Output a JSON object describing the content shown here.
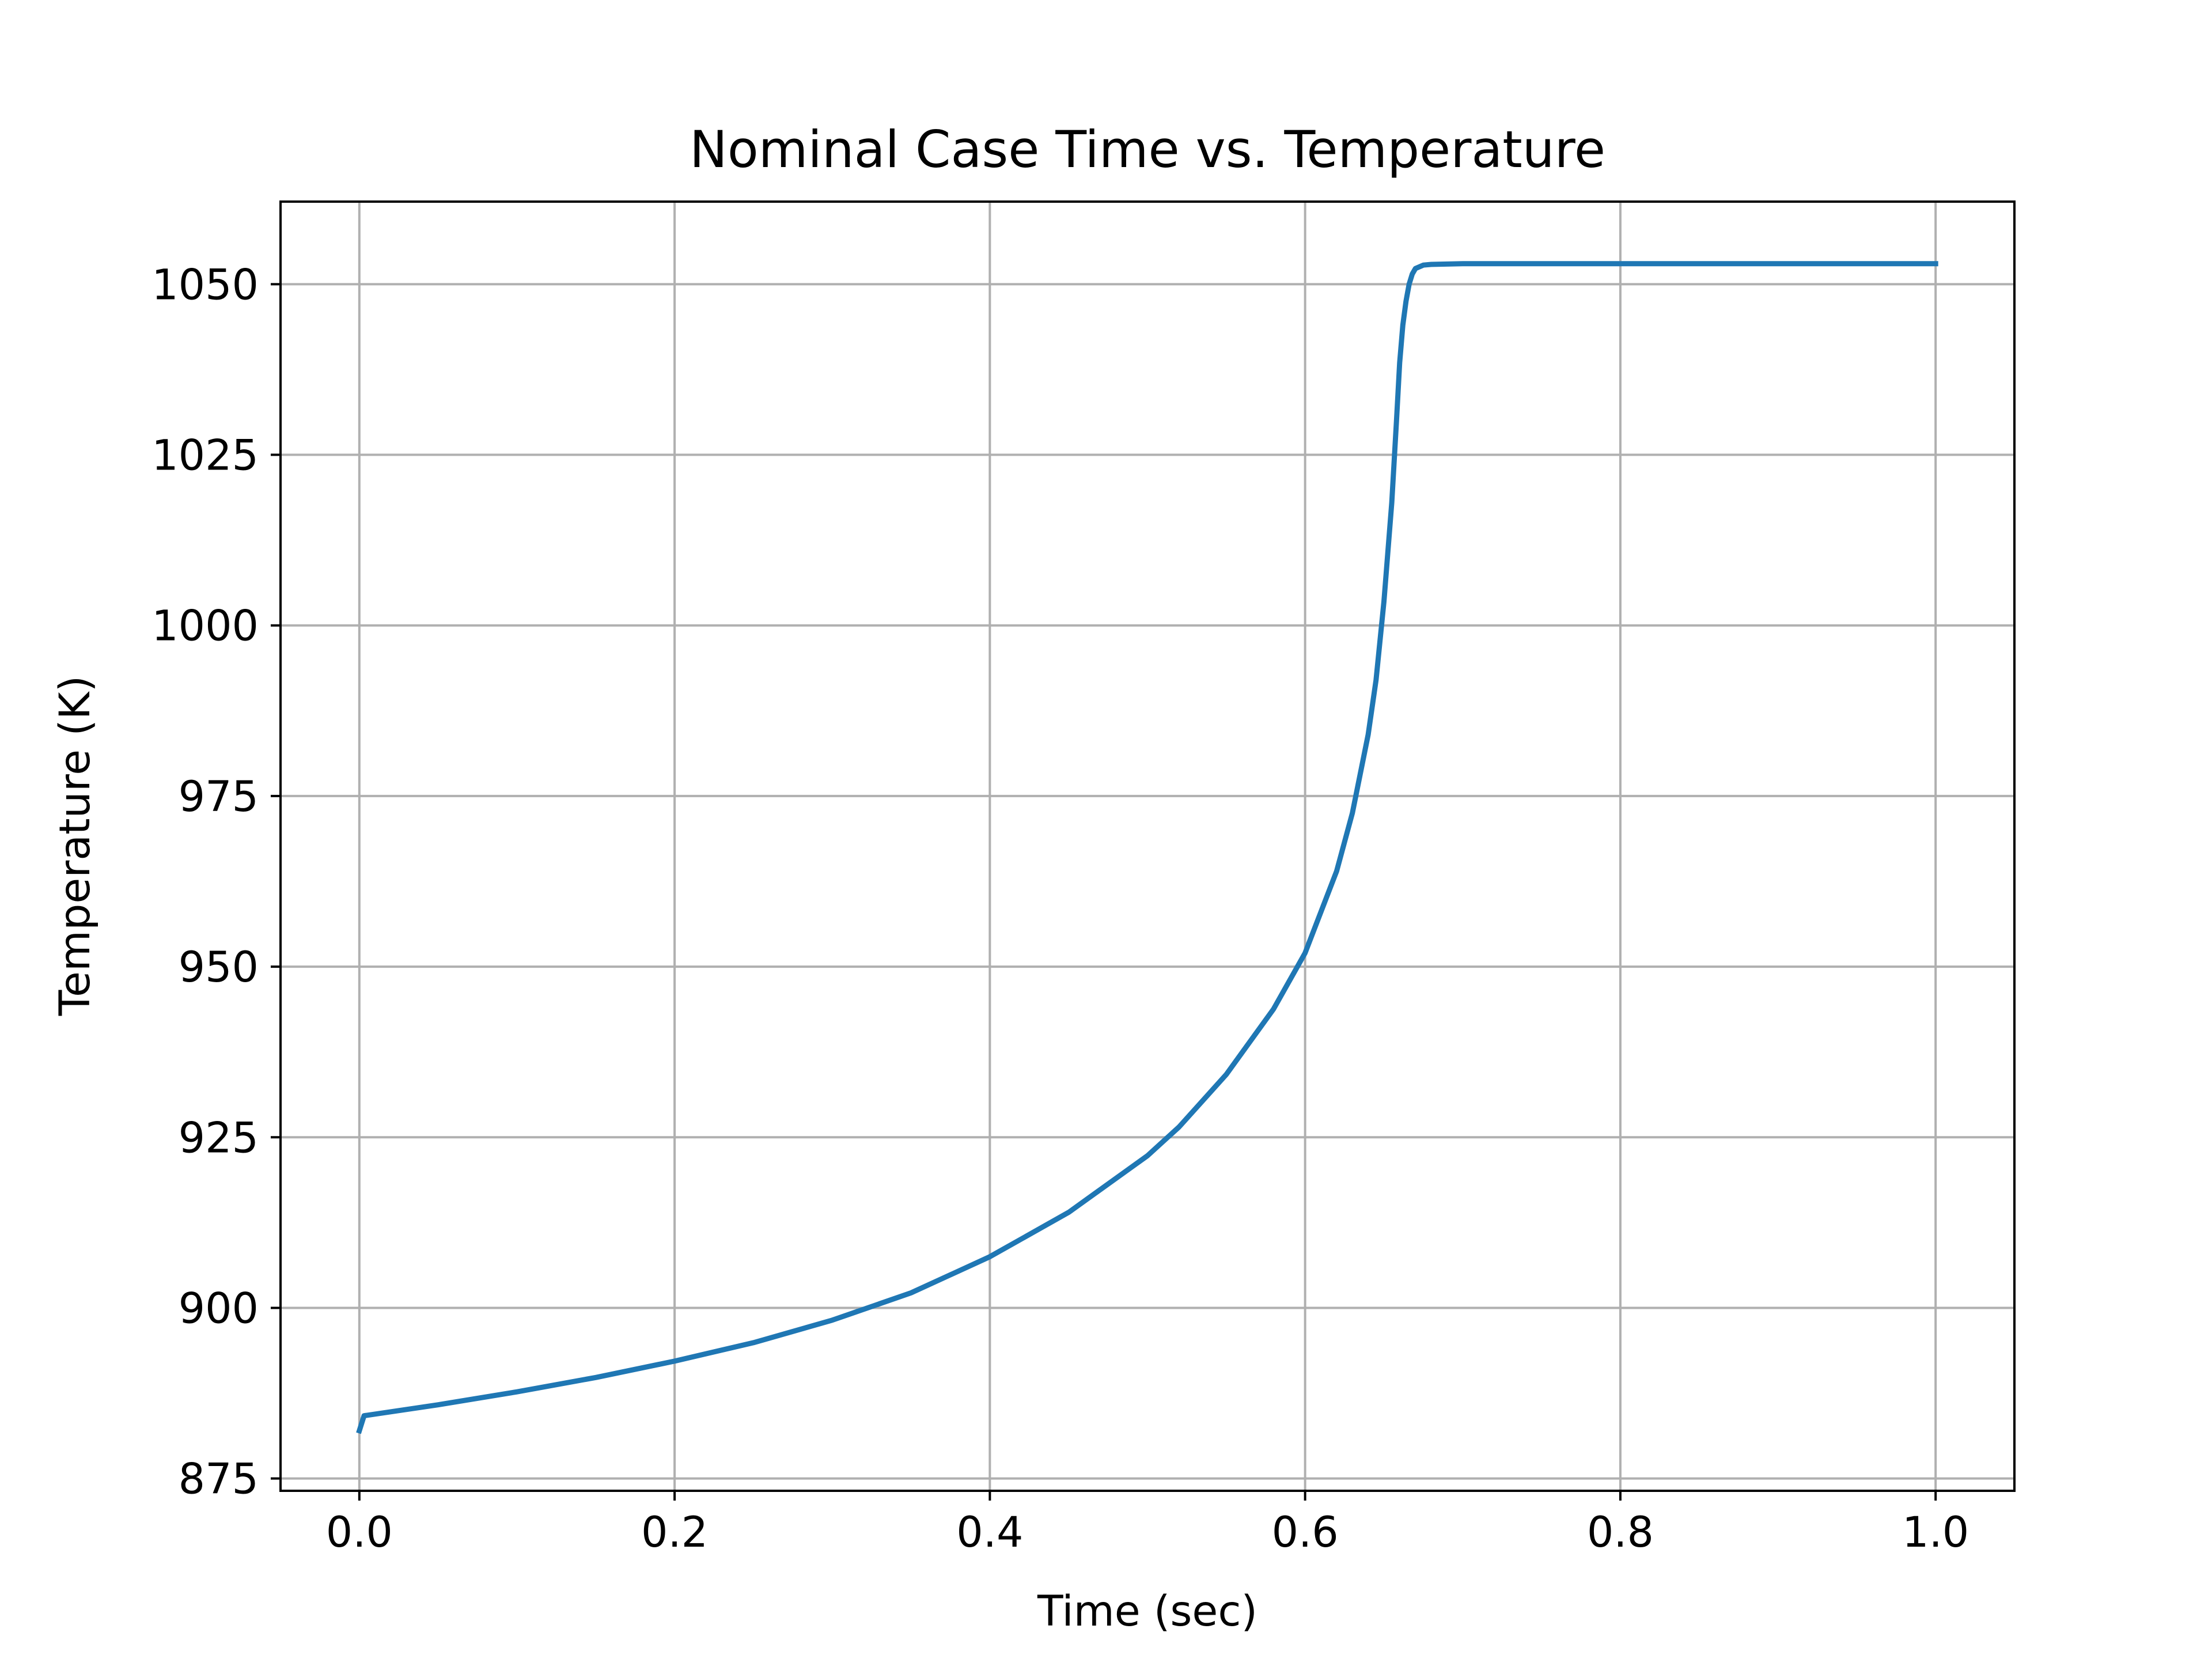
{
  "chart_data": {
    "type": "line",
    "title": "Nominal Case Time vs. Temperature",
    "xlabel": "Time (sec)",
    "ylabel": "Temperature (K)",
    "xlim": [
      -0.05,
      1.05
    ],
    "ylim": [
      873.2,
      1062.1
    ],
    "xticks": [
      0.0,
      0.2,
      0.4,
      0.6,
      0.8,
      1.0
    ],
    "xtick_labels": [
      "0.0",
      "0.2",
      "0.4",
      "0.6",
      "0.8",
      "1.0"
    ],
    "yticks": [
      875,
      900,
      925,
      950,
      975,
      1000,
      1025,
      1050
    ],
    "ytick_labels": [
      "875",
      "900",
      "925",
      "950",
      "975",
      "1000",
      "1025",
      "1050"
    ],
    "grid": true,
    "color": "#1f77b4",
    "series": [
      {
        "x": [
          0.0,
          0.003,
          0.05,
          0.1,
          0.15,
          0.2,
          0.25,
          0.3,
          0.35,
          0.4,
          0.45,
          0.5,
          0.52,
          0.55,
          0.58,
          0.6,
          0.62,
          0.63,
          0.64,
          0.645,
          0.65,
          0.655,
          0.658,
          0.66,
          0.662,
          0.664,
          0.666,
          0.668,
          0.67,
          0.675,
          0.68,
          0.7,
          0.75,
          0.8,
          0.9,
          1.0
        ],
        "y": [
          882.0,
          884.2,
          885.8,
          887.7,
          889.8,
          892.2,
          894.9,
          898.2,
          902.2,
          907.5,
          914.0,
          922.3,
          926.5,
          934.2,
          943.8,
          952.0,
          964.0,
          972.5,
          984.0,
          992.0,
          1003.5,
          1018.0,
          1030.0,
          1038.5,
          1044.0,
          1047.5,
          1050.0,
          1051.5,
          1052.3,
          1052.8,
          1052.9,
          1053.0,
          1053.0,
          1053.0,
          1053.0,
          1053.0
        ]
      }
    ]
  }
}
